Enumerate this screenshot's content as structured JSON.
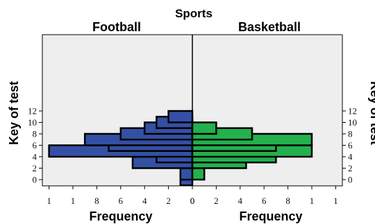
{
  "chart_data": {
    "type": "bar",
    "orientation": "horizontal",
    "layout": "back-to-back",
    "title": "Sports",
    "ylabel": "Key of test",
    "ylim": [
      -0.5,
      12.5
    ],
    "y_ticks": [
      "0",
      "2",
      "4",
      "6",
      "8",
      "10",
      "12"
    ],
    "x_ticks_left": [
      "1",
      "1",
      "8",
      "6",
      "4",
      "2",
      "0"
    ],
    "x_ticks_right": [
      "0",
      "2",
      "4",
      "6",
      "8",
      "1",
      "1"
    ],
    "xlim": [
      0,
      12
    ],
    "grid": false,
    "series": [
      {
        "name": "Football",
        "xlabel": "Frequency",
        "color": "#3450a4",
        "y": [
          0,
          1,
          3,
          4,
          5,
          6,
          7,
          8,
          9,
          10,
          11
        ],
        "values": [
          1,
          1,
          5,
          3,
          12,
          7,
          9,
          6,
          4,
          3,
          2
        ]
      },
      {
        "name": "Basketball",
        "xlabel": "Frequency",
        "color": "#22b14c",
        "y": [
          1,
          3,
          4,
          5,
          6,
          7,
          8,
          9
        ],
        "values": [
          1,
          4.5,
          7,
          10,
          7,
          10,
          5,
          2
        ]
      }
    ]
  },
  "colors": {
    "plot_background": "#eeeeee",
    "bar_outline": "#000000"
  }
}
